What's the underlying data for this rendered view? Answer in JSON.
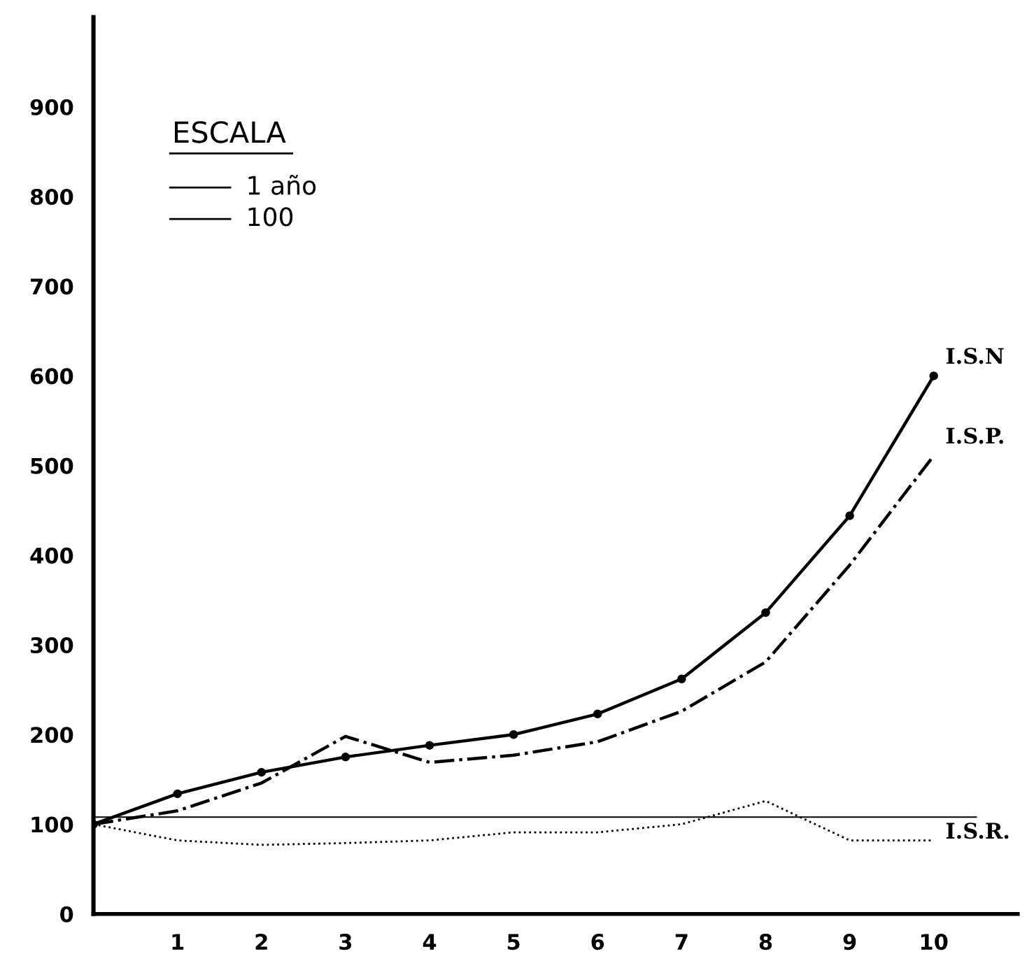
{
  "chart_data": {
    "type": "line",
    "x": [
      0,
      1,
      2,
      3,
      4,
      5,
      6,
      7,
      8,
      9,
      10
    ],
    "series": [
      {
        "name": "I.S.N",
        "color": "#000000",
        "marker": "circle",
        "line_style": "solid",
        "values": [
          100,
          134,
          158,
          175,
          188,
          200,
          223,
          262,
          336,
          444,
          600
        ]
      },
      {
        "name": "I.S.P.",
        "color": "#000000",
        "marker": "none",
        "line_style": "dashdot",
        "values": [
          100,
          115,
          146,
          198,
          169,
          177,
          192,
          226,
          281,
          389,
          511
        ]
      },
      {
        "name": "I.S.R.",
        "color": "#000000",
        "marker": "none",
        "line_style": "dotted",
        "values": [
          100,
          82,
          77,
          79,
          82,
          91,
          91,
          100,
          126,
          82,
          82
        ]
      }
    ],
    "ref_lines": [
      {
        "axis": "y",
        "value": 108,
        "color": "#000000",
        "line_style": "solid"
      }
    ],
    "annotations": [
      "ESCALA",
      "1 año",
      "100"
    ],
    "xlim": [
      0,
      11
    ],
    "xticks": [
      1,
      2,
      3,
      4,
      5,
      6,
      7,
      8,
      9,
      10
    ],
    "ylim": [
      0,
      1000
    ],
    "yticks": [
      0,
      100,
      200,
      300,
      400,
      500,
      600,
      700,
      800,
      900
    ],
    "grid": false,
    "legend": false
  }
}
